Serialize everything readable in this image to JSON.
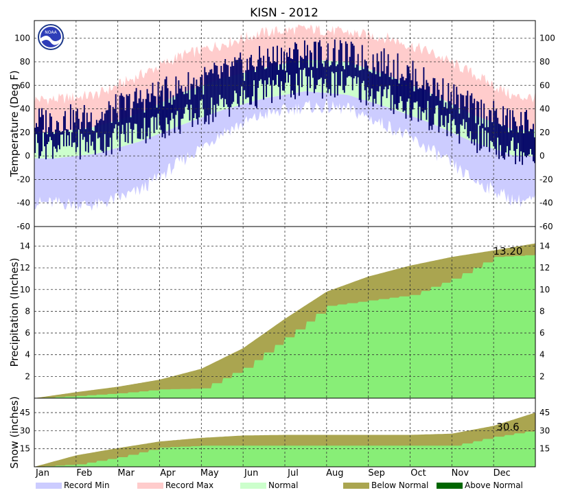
{
  "chart_data": {
    "type": "area",
    "title": "KISN - 2012",
    "x_categories": [
      "Jan",
      "Feb",
      "Mar",
      "Apr",
      "May",
      "Jun",
      "Jul",
      "Aug",
      "Sep",
      "Oct",
      "Nov",
      "Dec"
    ],
    "colors": {
      "record_min": "#ccccff",
      "record_max": "#ffcccc",
      "normal": "#ccffcc",
      "observed": "#000066",
      "below_normal": "#aaa550",
      "above_normal": "#006600",
      "accum": "#88ee77"
    },
    "legend": [
      {
        "label": "Record Min",
        "color": "#ccccff"
      },
      {
        "label": "Record Max",
        "color": "#ffcccc"
      },
      {
        "label": "Normal",
        "color": "#ccffcc"
      },
      {
        "label": "Below Normal",
        "color": "#aaa550"
      },
      {
        "label": "Above Normal",
        "color": "#006600"
      }
    ],
    "temperature": {
      "ylabel": "Temperature (Deg F)",
      "ylim": [
        -60,
        115
      ],
      "ticks": [
        100,
        80,
        60,
        40,
        20,
        0,
        -20,
        -40,
        -60
      ],
      "record_min_monthly": [
        -40,
        -42,
        -30,
        -5,
        20,
        35,
        42,
        40,
        25,
        5,
        -20,
        -38
      ],
      "record_max_monthly": [
        48,
        52,
        68,
        85,
        95,
        105,
        108,
        105,
        100,
        88,
        70,
        50
      ],
      "normal_high_monthly": [
        20,
        25,
        36,
        53,
        66,
        75,
        82,
        80,
        68,
        53,
        35,
        22
      ],
      "normal_low_monthly": [
        -2,
        2,
        12,
        26,
        39,
        49,
        55,
        52,
        41,
        28,
        12,
        0
      ],
      "observed_high_monthly": [
        30,
        33,
        48,
        58,
        70,
        82,
        88,
        85,
        78,
        60,
        40,
        28
      ],
      "observed_low_monthly": [
        10,
        10,
        22,
        30,
        43,
        55,
        62,
        60,
        48,
        33,
        15,
        5
      ]
    },
    "precipitation": {
      "ylabel": "Precipitation (Inches)",
      "ylim": [
        0,
        15.8
      ],
      "ticks": [
        14,
        12,
        10,
        8,
        6,
        4,
        2
      ],
      "normal_cumulative_monthly_end": [
        0.55,
        1.05,
        1.7,
        2.7,
        4.6,
        7.3,
        9.8,
        11.2,
        12.2,
        13.0,
        13.6,
        14.25
      ],
      "observed_cumulative_monthly_end": [
        0.2,
        0.45,
        0.8,
        0.9,
        2.8,
        5.6,
        8.5,
        9.0,
        9.5,
        11.0,
        13.0,
        13.2
      ],
      "total_label": "13.20"
    },
    "snow": {
      "ylabel": "Snow (inches)",
      "ylim": [
        0,
        57
      ],
      "ticks": [
        45,
        30,
        15
      ],
      "normal_cumulative_monthly_end": [
        9.5,
        15.5,
        21,
        24,
        26,
        26.5,
        26.5,
        26.5,
        26.5,
        27.5,
        34,
        45
      ],
      "observed_cumulative_monthly_end": [
        2,
        8,
        16,
        17.5,
        17.5,
        17.5,
        17.5,
        17.5,
        17.5,
        17.5,
        25,
        30.6
      ],
      "total_label": "30.6"
    },
    "logo_text": "NOAA"
  }
}
